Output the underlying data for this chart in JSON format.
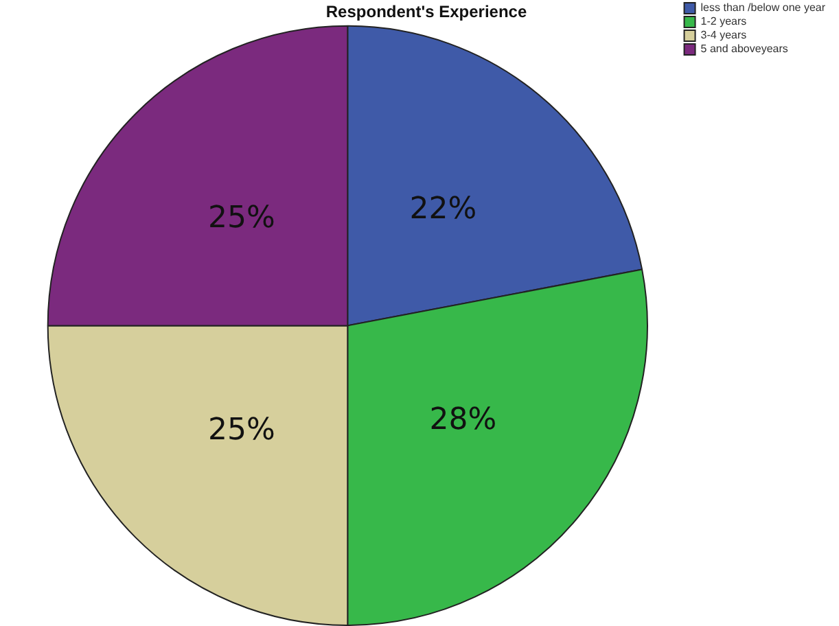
{
  "chart_data": {
    "type": "pie",
    "title": "Respondent's Experience",
    "categories": [
      "less than /below one year",
      "1-2 years",
      "3-4 years",
      "5 and aboveyears"
    ],
    "values": [
      22,
      28,
      25,
      25
    ],
    "colors": [
      "#3f5aa8",
      "#37b84a",
      "#d6cf9c",
      "#7b2a7e"
    ],
    "value_labels": [
      "22%",
      "28%",
      "25%",
      "25%"
    ],
    "legend": "top right"
  }
}
